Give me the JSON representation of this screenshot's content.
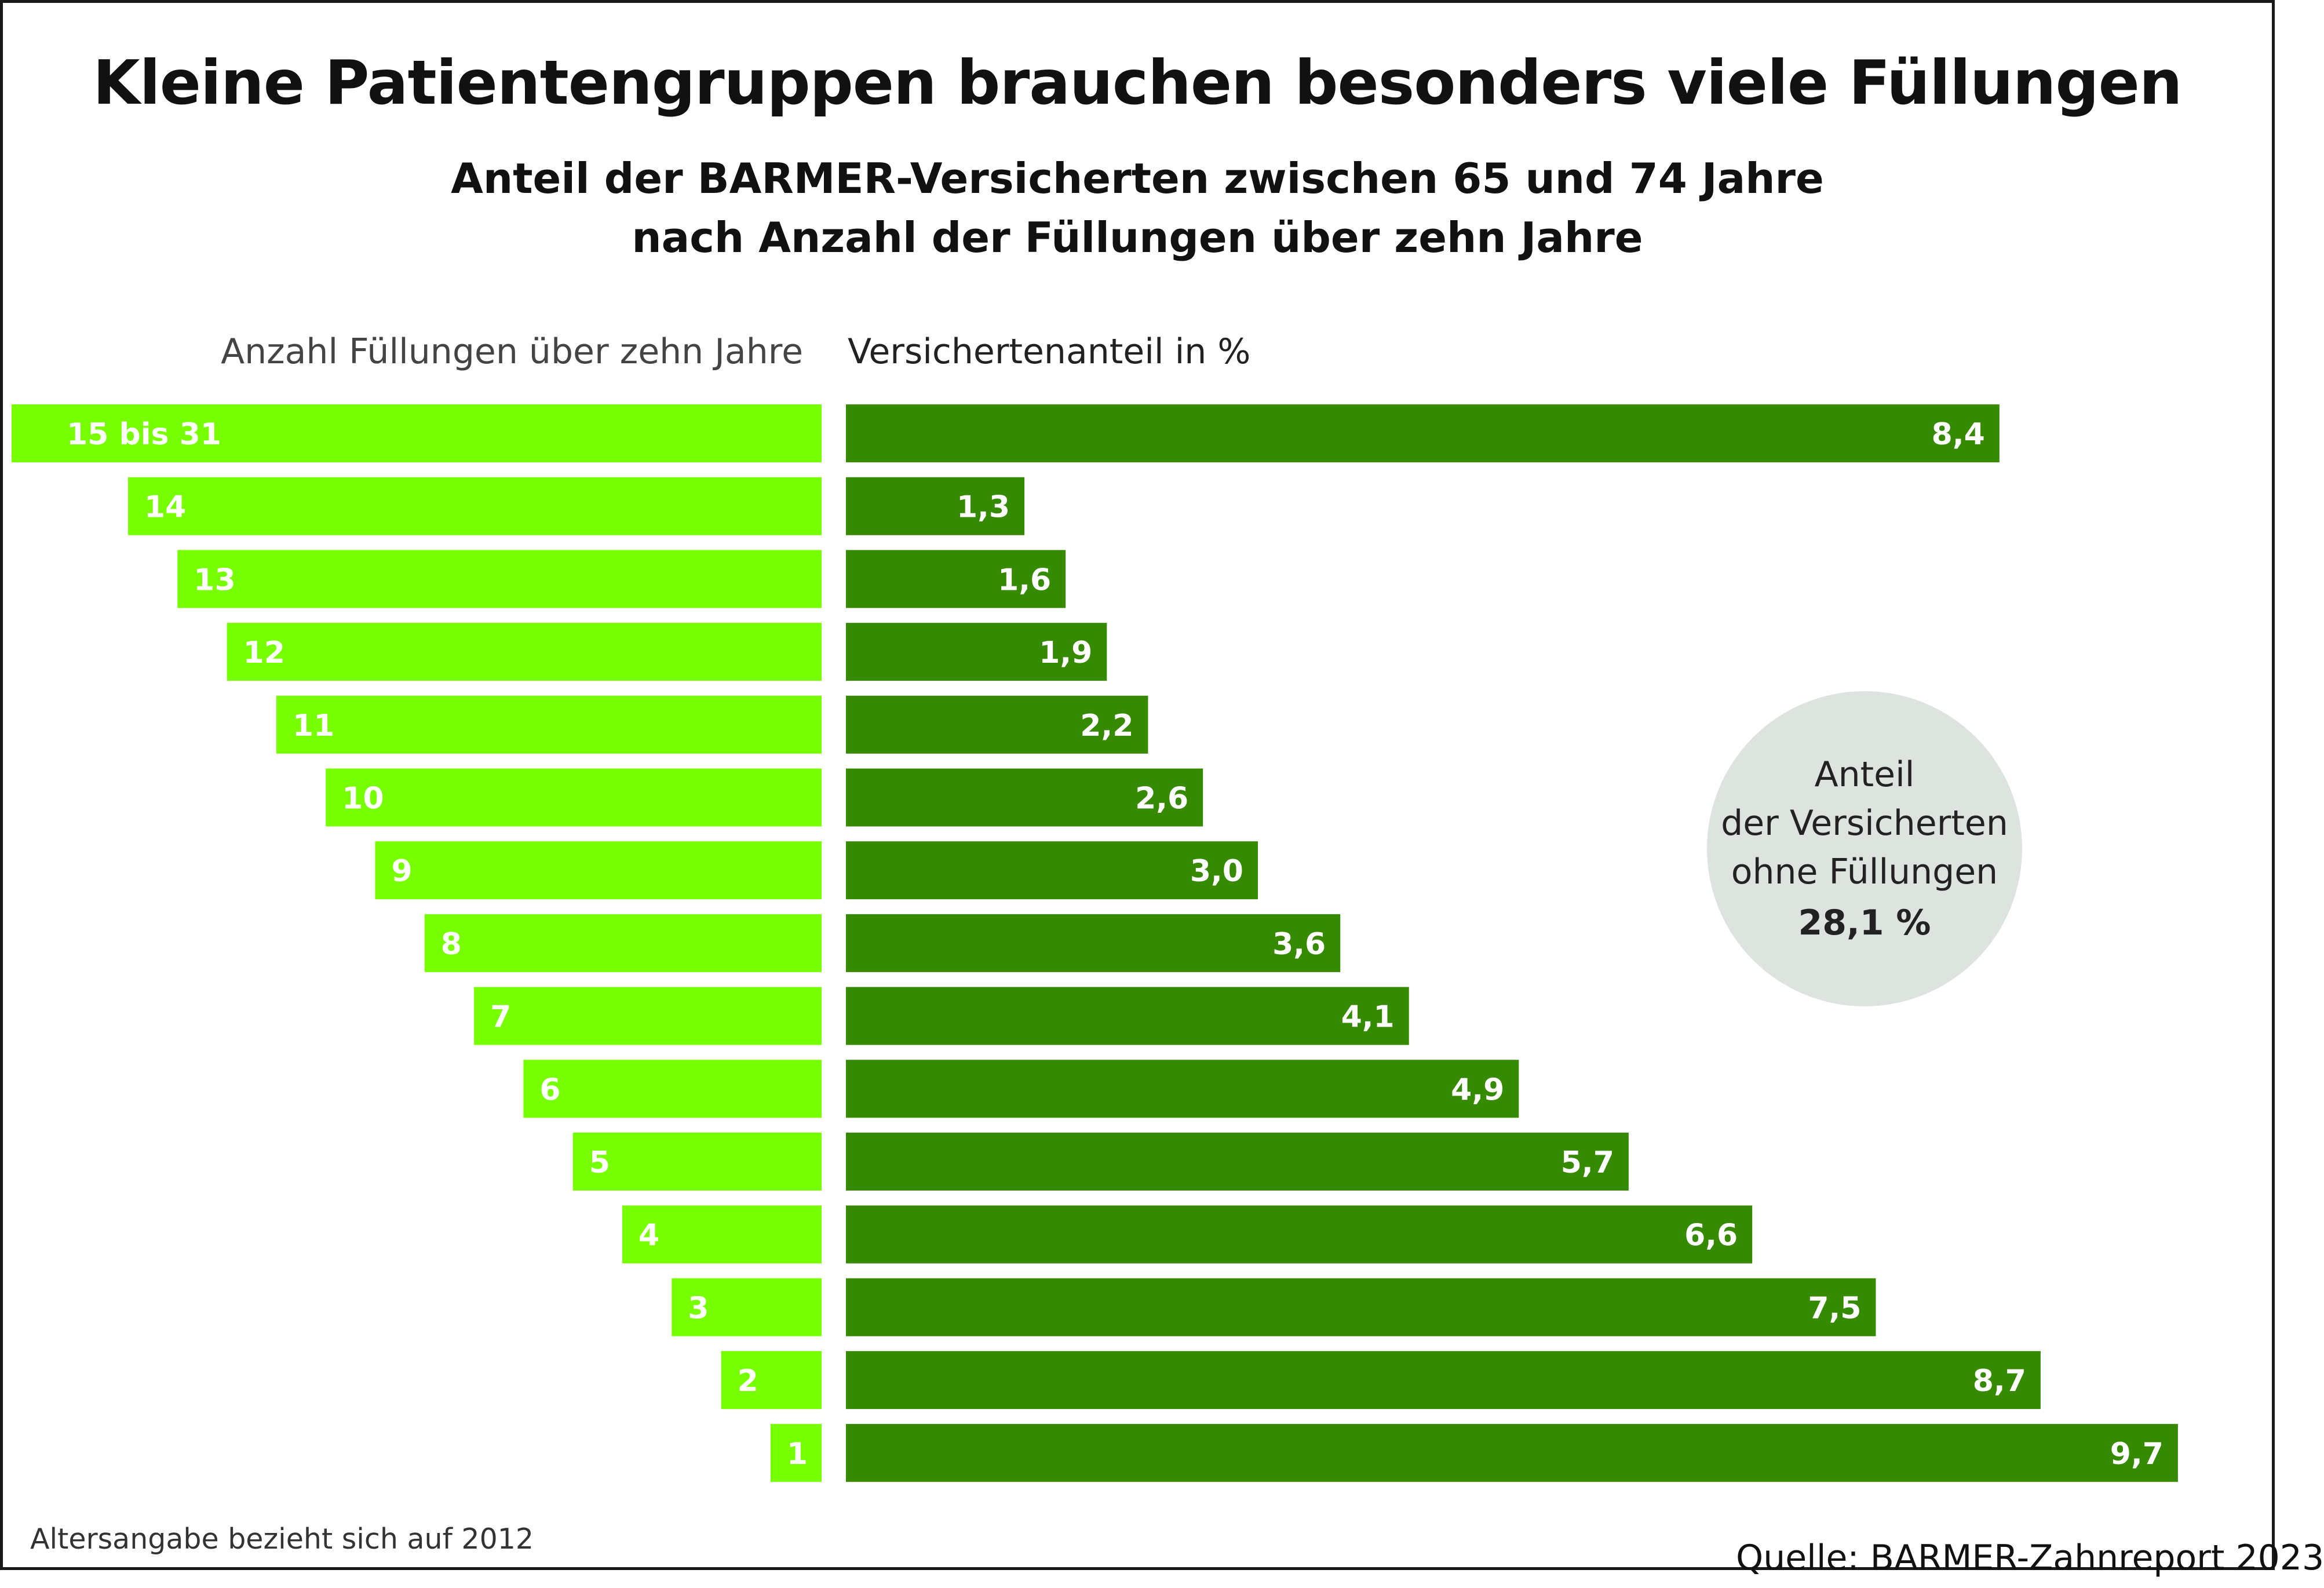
{
  "title": "Kleine Patientengruppen brauchen besonders viele Füllungen",
  "subtitle_line1": "Anteil der BARMER-Versicherten zwischen 65 und 74 Jahre",
  "subtitle_line2": "nach Anzahl der Füllungen über zehn Jahre",
  "left_header": "Anzahl Füllungen über zehn Jahre",
  "right_header": "Versichertenanteil in %",
  "bubble": {
    "line1": "Anteil",
    "line2": "der Versicherten",
    "line3": "ohne Füllungen",
    "value": "28,1 %"
  },
  "footnote": "Altersangabe bezieht sich auf 2012",
  "source": "Quelle: BARMER-Zahnreport 2023",
  "colors": {
    "left_bar": "#77ff00",
    "right_bar": "#368a00",
    "bubble": "#dde4df",
    "label": "#ffffff"
  },
  "chart_data": {
    "type": "bar",
    "orientation": "horizontal",
    "categories": [
      "15 bis 31",
      "14",
      "13",
      "12",
      "11",
      "10",
      "9",
      "8",
      "7",
      "6",
      "5",
      "4",
      "3",
      "2",
      "1"
    ],
    "values": [
      8.4,
      1.3,
      1.6,
      1.9,
      2.2,
      2.6,
      3.0,
      3.6,
      4.1,
      4.9,
      5.7,
      6.6,
      7.5,
      8.7,
      9.7
    ],
    "value_labels": [
      "8,4",
      "1,3",
      "1,6",
      "1,9",
      "2,2",
      "2,6",
      "3,0",
      "3,6",
      "4,1",
      "4,9",
      "5,7",
      "6,6",
      "7,5",
      "8,7",
      "9,7"
    ],
    "xlabel": "Versichertenanteil in %",
    "ylabel": "Anzahl Füllungen über zehn Jahre",
    "xlim": [
      0,
      9.7
    ],
    "grid": false,
    "legend": "none"
  }
}
